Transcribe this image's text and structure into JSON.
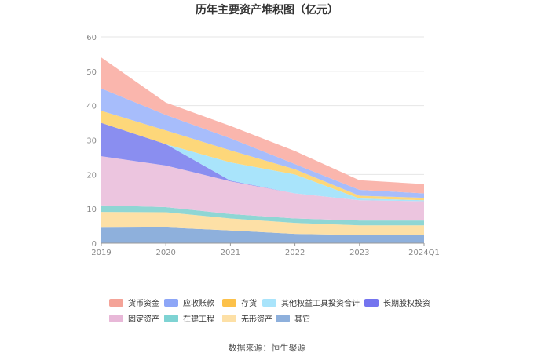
{
  "chart_data": {
    "type": "area",
    "stacked": true,
    "title": "历年主要资产堆积图（亿元）",
    "x": [
      "2019",
      "2020",
      "2021",
      "2022",
      "2023",
      "2024Q1"
    ],
    "ylim": [
      0,
      60
    ],
    "yticks": [
      0,
      10,
      20,
      30,
      40,
      50,
      60
    ],
    "grid": true,
    "legend_position": "bottom",
    "source": "数据来源：恒生聚源",
    "series": [
      {
        "name": "其它",
        "color": "#8eb0dc",
        "values": [
          4.5,
          4.6,
          3.7,
          2.7,
          2.4,
          2.4
        ]
      },
      {
        "name": "无形资产",
        "color": "#fde0a6",
        "values": [
          4.6,
          4.4,
          3.5,
          3.2,
          2.8,
          2.8
        ]
      },
      {
        "name": "在建工程",
        "color": "#8fd6d4",
        "values": [
          1.9,
          1.5,
          1.3,
          1.3,
          1.4,
          1.4
        ]
      },
      {
        "name": "固定资产",
        "color": "#ecc5df",
        "values": [
          14.3,
          12.1,
          9.5,
          7.3,
          5.9,
          5.6
        ]
      },
      {
        "name": "长期股权投资",
        "color": "#8a8ef0",
        "values": [
          9.7,
          6.2,
          0.2,
          0.0,
          0.0,
          0.0
        ]
      },
      {
        "name": "其他权益工具投资合计",
        "color": "#a9e4fb",
        "values": [
          0.0,
          0.0,
          5.3,
          5.5,
          0.5,
          0.3
        ]
      },
      {
        "name": "存货",
        "color": "#fdd77a",
        "values": [
          3.5,
          4.0,
          3.5,
          1.5,
          0.8,
          0.7
        ]
      },
      {
        "name": "应收账款",
        "color": "#a7bdfb",
        "values": [
          6.5,
          4.5,
          3.5,
          1.5,
          1.7,
          1.3
        ]
      },
      {
        "name": "货币资金",
        "color": "#fab6ad",
        "values": [
          9.0,
          3.6,
          3.6,
          3.8,
          2.8,
          2.7
        ]
      }
    ],
    "legend_order": [
      "货币资金",
      "应收账款",
      "存货",
      "其他权益工具投资合计",
      "长期股权投资",
      "固定资产",
      "在建工程",
      "无形资产",
      "其它"
    ],
    "legend_colors": {
      "货币资金": "#f4a398",
      "应收账款": "#8da6f7",
      "存货": "#fcc14a",
      "其他权益工具投资合计": "#a9e4fb",
      "长期股权投资": "#7474ef",
      "固定资产": "#e8b8d8",
      "在建工程": "#7ed3d3",
      "无形资产": "#fde0a6",
      "其它": "#8eb0dc"
    }
  }
}
